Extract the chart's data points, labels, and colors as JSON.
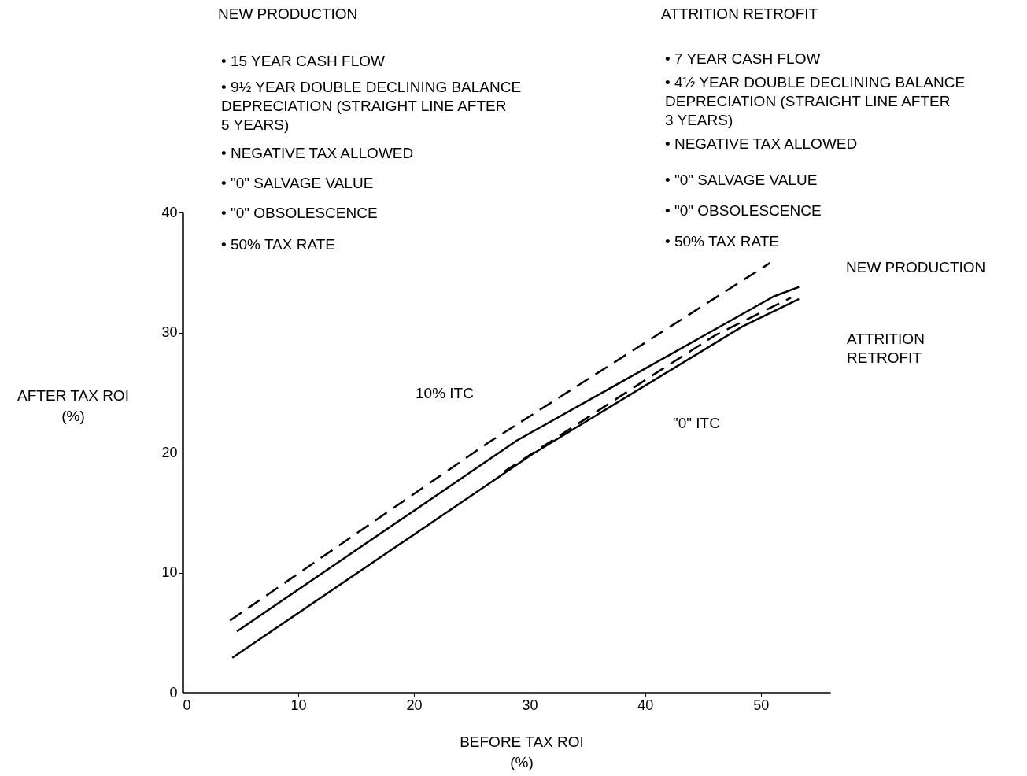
{
  "chart_data": {
    "type": "line",
    "xlabel": "BEFORE TAX ROI\n(%)",
    "ylabel": "AFTER TAX ROI\n(%)",
    "xlim": [
      0,
      56
    ],
    "xticks": [
      0,
      10,
      20,
      30,
      40,
      50
    ],
    "ylim": [
      0,
      40
    ],
    "yticks": [
      0,
      10,
      20,
      30,
      40
    ],
    "grid": false,
    "marker": "none",
    "series": [
      {
        "color": "#000000",
        "line_style": "dashed",
        "x": [
          4.1,
          26.4,
          50.8
        ],
        "values": [
          6.0,
          20.8,
          35.8
        ]
      },
      {
        "color": "#000000",
        "line_style": "solid",
        "x": [
          4.7,
          28.9,
          51.1,
          53.3
        ],
        "values": [
          5.1,
          21.0,
          33.0,
          33.8
        ]
      },
      {
        "color": "#000000",
        "line_style": "dashed",
        "x": [
          27.8,
          40.9,
          46.1,
          52.6
        ],
        "values": [
          18.4,
          26.6,
          29.8,
          32.9
        ]
      },
      {
        "color": "#000000",
        "line_style": "solid",
        "x": [
          4.3,
          30.3,
          48.4,
          53.3
        ],
        "values": [
          2.9,
          19.9,
          30.5,
          32.8
        ]
      }
    ],
    "annotations": [
      "NEW PRODUCTION",
      "• 15 YEAR CASH FLOW",
      "• 9½ YEAR DOUBLE DECLINING BALANCE\n   DEPRECIATION (STRAIGHT LINE AFTER\n   5 YEARS)",
      "• NEGATIVE TAX ALLOWED",
      "• \"0\" SALVAGE VALUE",
      "• \"0\" OBSOLESCENCE",
      "• 50% TAX RATE",
      "ATTRITION RETROFIT",
      "• 7 YEAR CASH FLOW",
      "• 4½ YEAR DOUBLE DECLINING BALANCE\n   DEPRECIATION (STRAIGHT LINE AFTER\n   3 YEARS)",
      "• NEGATIVE TAX ALLOWED",
      "• \"0\" SALVAGE VALUE",
      "• \"0\" OBSOLESCENCE",
      "• 50% TAX RATE",
      "NEW PRODUCTION",
      "ATTRITION\nRETROFIT",
      "10% ITC",
      "\"0\" ITC"
    ]
  }
}
